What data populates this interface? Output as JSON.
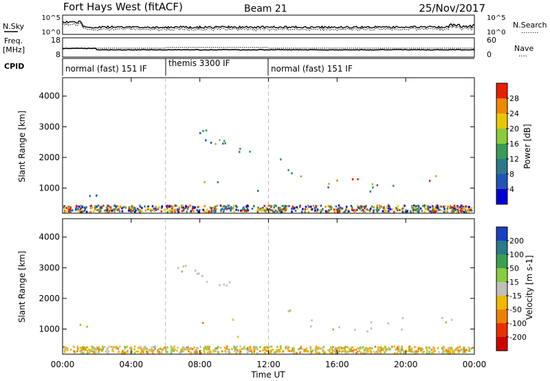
{
  "header": {
    "title": "Fort Hays West (fitACF)",
    "beam": "Beam 21",
    "date": "25/Nov/2017"
  },
  "panels": {
    "nsky_label": "N.Sky",
    "nsearch_label": "N.Search",
    "nsearch_key": "........",
    "freq_label": "Freq.",
    "freq_unit": "[MHz]",
    "nave_label": "Nave",
    "nave_key": "....",
    "cpid_label": "CPID",
    "left_ticks_top": "10^5",
    "left_ticks_bot": "10^0",
    "right_ticks_top": "10^5",
    "right_ticks_bot": "10^0",
    "freq_top": "18",
    "freq_bot": "8",
    "nave_top": "60",
    "nave_bot": "0",
    "modes": [
      {
        "label": "normal (fast) 151 IF",
        "start_h": 0
      },
      {
        "label": "themis 3300 IF",
        "start_h": 6
      },
      {
        "label": "normal (fast) 151 IF",
        "start_h": 12
      }
    ]
  },
  "chart_data": [
    {
      "type": "heatmap",
      "name": "power",
      "ylabel": "Slant Range [km]",
      "xlabel": "Time UT",
      "xlim": [
        0,
        24
      ],
      "ylim": [
        180,
        4600
      ],
      "x_ticks": [
        "00:00",
        "04:00",
        "08:00",
        "12:00",
        "16:00",
        "20:00",
        "00:00"
      ],
      "x_tick_hours": [
        0,
        4,
        8,
        12,
        16,
        20,
        24
      ],
      "y_ticks": [
        1000,
        2000,
        3000,
        4000
      ],
      "colorbar": {
        "label": "Power [dB]",
        "ticks": [
          "4",
          "8",
          "12",
          "16",
          "20",
          "24",
          "28"
        ],
        "colors": [
          "#0000d8",
          "#2255b8",
          "#2a7a8a",
          "#3a9a5a",
          "#8acc3a",
          "#e8c800",
          "#f08800",
          "#e82000"
        ]
      },
      "regions": [
        {
          "x0": 0.8,
          "x1": 2.0,
          "r0": 700,
          "r1": 1150,
          "val": "mid-low"
        },
        {
          "x0": 6.2,
          "x1": 11.0,
          "r0": 2000,
          "r1": 3300,
          "val": "mid"
        },
        {
          "x0": 7.0,
          "x1": 10.5,
          "r0": 1150,
          "r1": 1300,
          "val": "mid"
        },
        {
          "x0": 10.0,
          "x1": 11.7,
          "r0": 700,
          "r1": 950,
          "val": "mid"
        },
        {
          "x0": 12.3,
          "x1": 23.3,
          "r0": 1000,
          "r1": 1700,
          "val": "high"
        },
        {
          "x0": 0,
          "x1": 24,
          "r0": 200,
          "r1": 420,
          "val": "noise"
        }
      ],
      "vlines_h": [
        6,
        12
      ]
    },
    {
      "type": "heatmap",
      "name": "velocity",
      "ylabel": "Slant Range [km]",
      "xlabel": "Time UT",
      "xlim": [
        0,
        24
      ],
      "ylim": [
        180,
        4600
      ],
      "x_ticks": [
        "00:00",
        "04:00",
        "08:00",
        "12:00",
        "16:00",
        "20:00",
        "00:00"
      ],
      "x_tick_hours": [
        0,
        4,
        8,
        12,
        16,
        20,
        24
      ],
      "y_ticks": [
        1000,
        2000,
        3000,
        4000
      ],
      "colorbar": {
        "label": "Velocity [m s-1]",
        "ticks": [
          "200",
          "100",
          "50",
          "15",
          "-15",
          "-50",
          "-100",
          "-200"
        ],
        "colors": [
          "#1840c0",
          "#2a7a8a",
          "#3aa050",
          "#88cc40",
          "#c0c0b8",
          "#f0b800",
          "#f08000",
          "#e83000",
          "#d00000"
        ]
      },
      "regions": [
        {
          "x0": 0.8,
          "x1": 2.0,
          "r0": 700,
          "r1": 1150,
          "val": "green"
        },
        {
          "x0": 6.2,
          "x1": 11.0,
          "r0": 2000,
          "r1": 3300,
          "val": "grey"
        },
        {
          "x0": 7.0,
          "x1": 10.5,
          "r0": 1150,
          "r1": 1300,
          "val": "orange"
        },
        {
          "x0": 10.0,
          "x1": 11.7,
          "r0": 700,
          "r1": 950,
          "val": "orange"
        },
        {
          "x0": 12.3,
          "x1": 23.3,
          "r0": 1000,
          "r1": 1700,
          "val": "grey"
        },
        {
          "x0": 0,
          "x1": 24,
          "r0": 200,
          "r1": 420,
          "val": "ground"
        }
      ],
      "vlines_h": [
        6,
        12
      ]
    }
  ]
}
